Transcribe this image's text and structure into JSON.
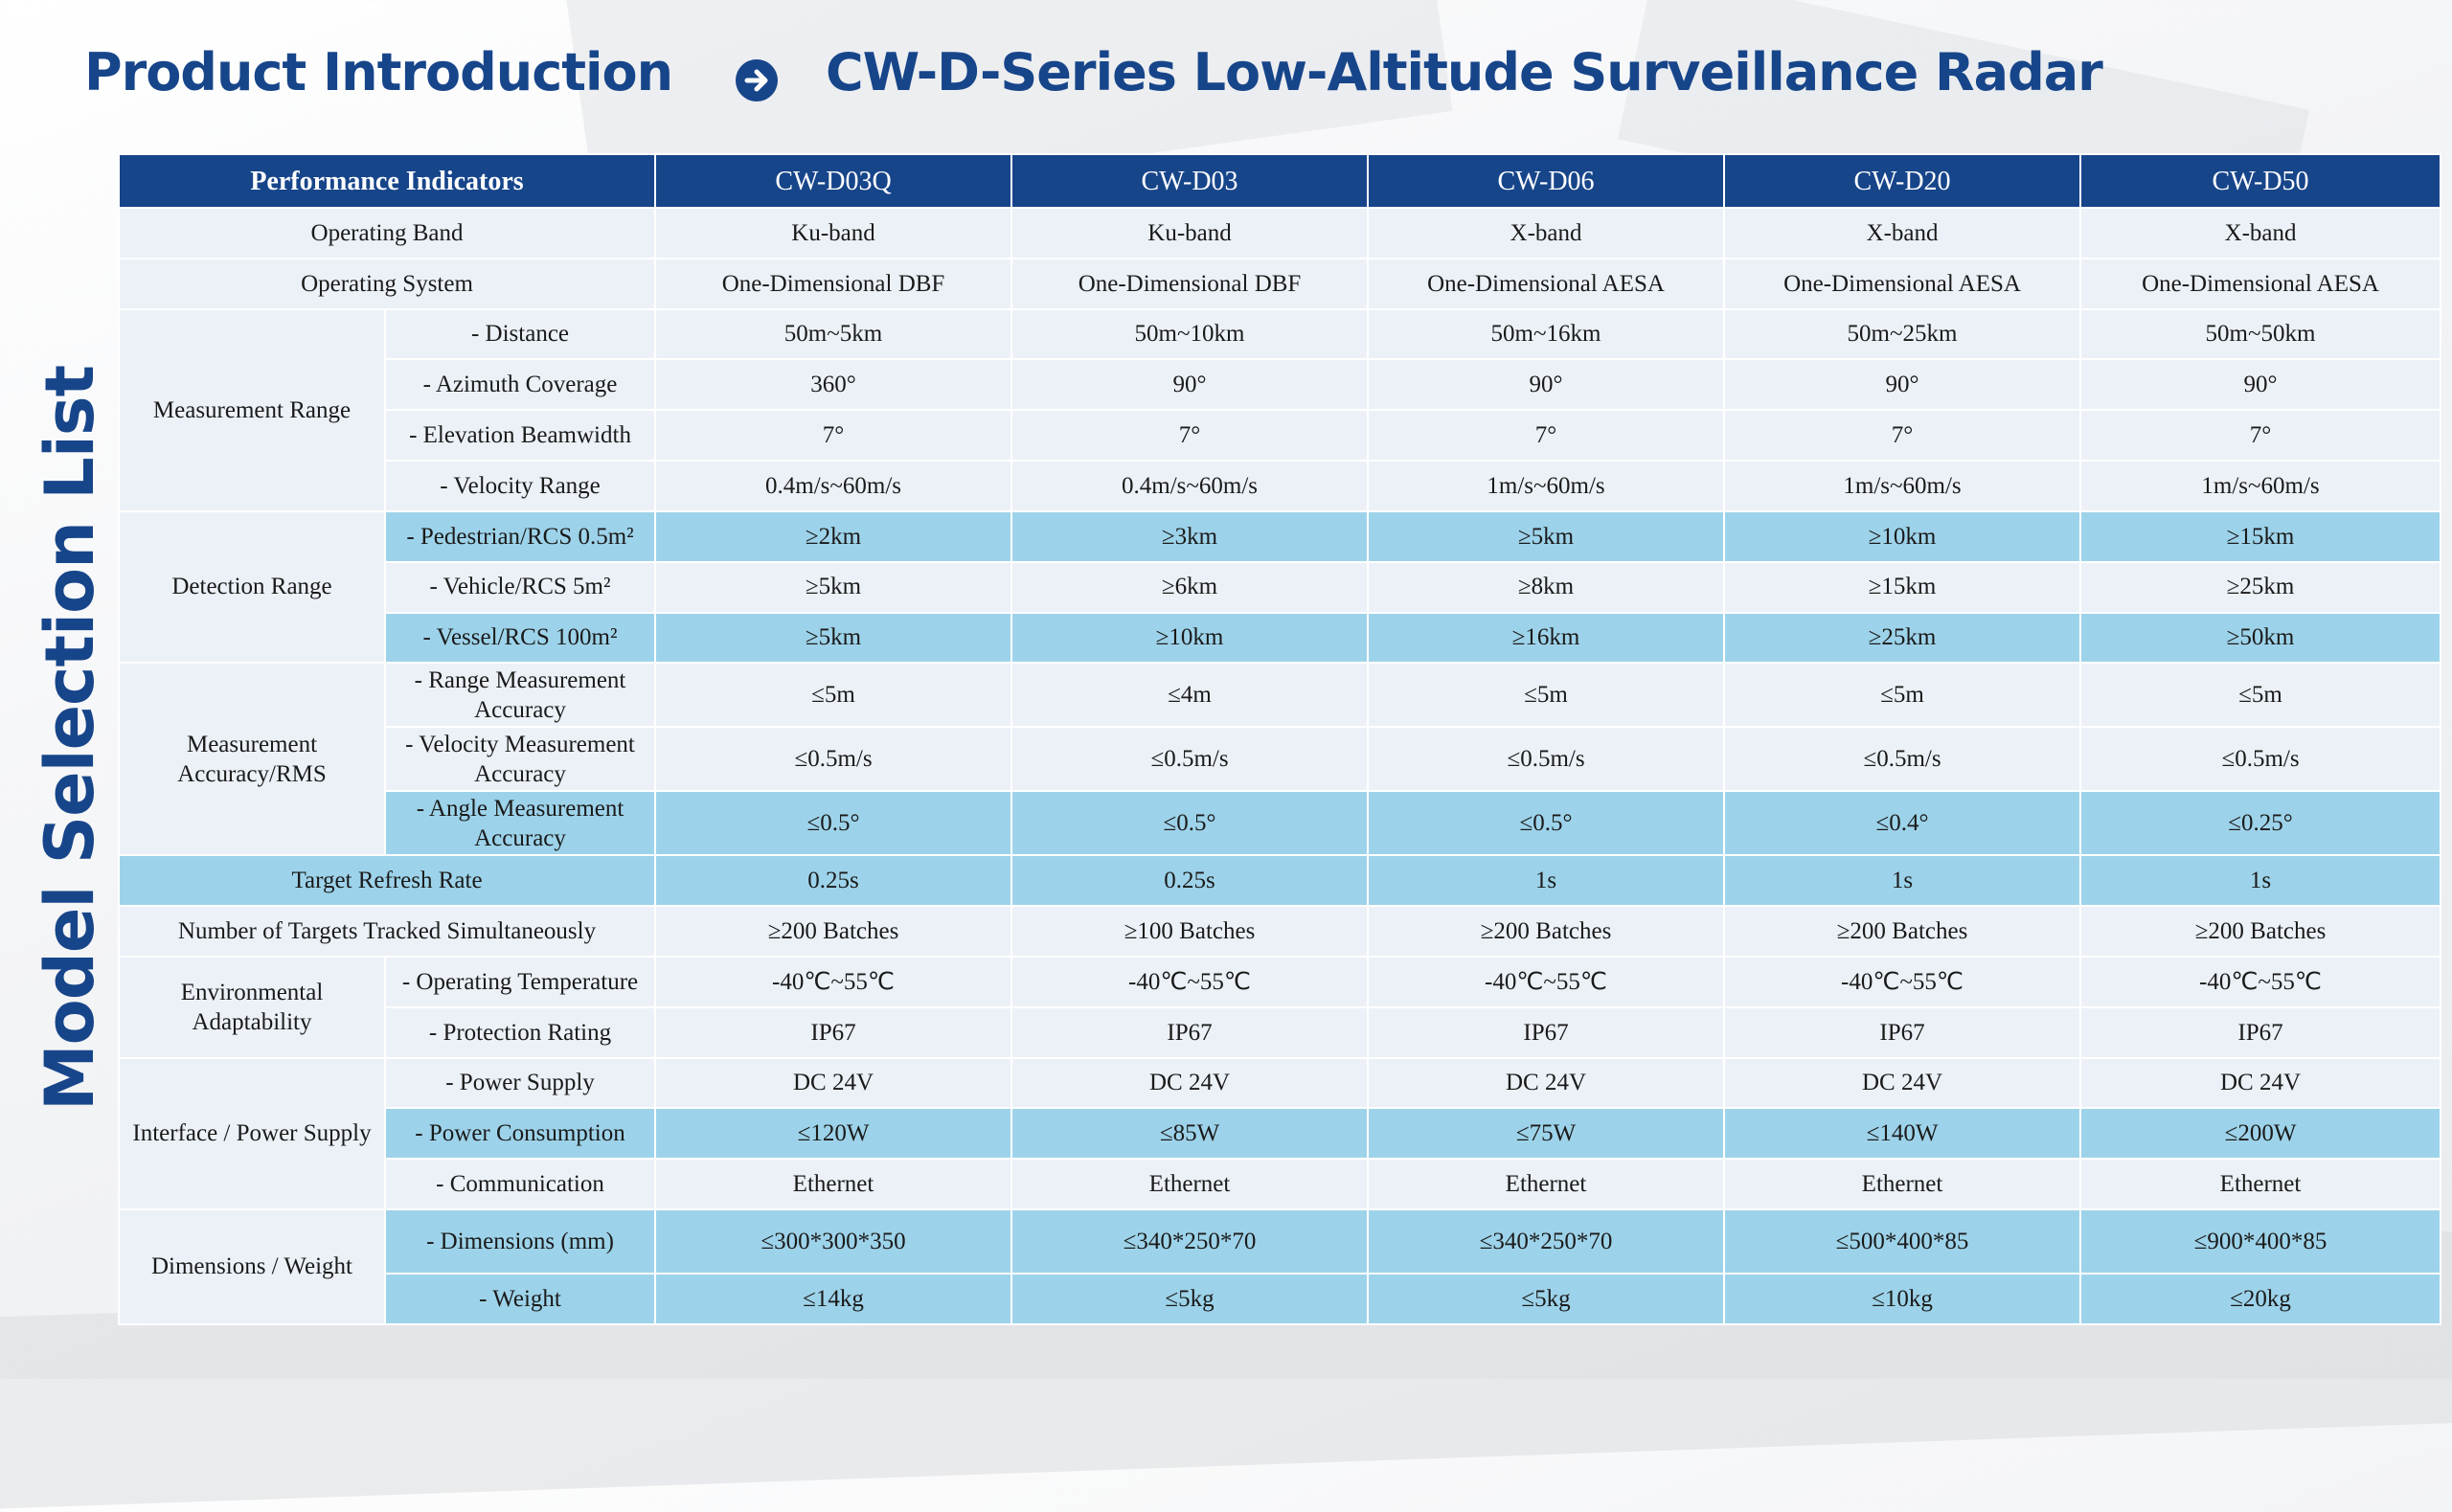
{
  "header": {
    "title": "Product Introduction",
    "subtitle": "CW-D-Series Low-Altitude Surveillance Radar",
    "arrow_icon": "arrow-circle-right-icon"
  },
  "side_label": "Model Selection List",
  "colors": {
    "brand": "#17458a",
    "row_light": "#ecf1f8",
    "row_highlight": "#9dd3ea"
  },
  "table": {
    "header": [
      "Performance Indicators",
      "CW-D03Q",
      "CW-D03",
      "CW-D06",
      "CW-D20",
      "CW-D50"
    ],
    "rows": [
      {
        "name": "row-operating-band",
        "group": "Operating Band",
        "span_group": true,
        "values": [
          "Ku-band",
          "Ku-band",
          "X-band",
          "X-band",
          "X-band"
        ]
      },
      {
        "name": "row-operating-system",
        "group": "Operating System",
        "span_group": true,
        "values": [
          "One-Dimensional DBF",
          "One-Dimensional DBF",
          "One-Dimensional AESA",
          "One-Dimensional AESA",
          "One-Dimensional AESA"
        ]
      },
      {
        "name": "row-distance",
        "group": "Measurement Range",
        "group_rows": 4,
        "sub": "- Distance",
        "values": [
          "50m~5km",
          "50m~10km",
          "50m~16km",
          "50m~25km",
          "50m~50km"
        ]
      },
      {
        "name": "row-azimuth-coverage",
        "sub": "- Azimuth Coverage",
        "values": [
          "360°",
          "90°",
          "90°",
          "90°",
          "90°"
        ]
      },
      {
        "name": "row-elevation-beamwidth",
        "sub": "- Elevation Beamwidth",
        "values": [
          "7°",
          "7°",
          "7°",
          "7°",
          "7°"
        ]
      },
      {
        "name": "row-velocity-range",
        "sub": "- Velocity Range",
        "values": [
          "0.4m/s~60m/s",
          "0.4m/s~60m/s",
          "1m/s~60m/s",
          "1m/s~60m/s",
          "1m/s~60m/s"
        ]
      },
      {
        "name": "row-pedestrian",
        "group": "Detection Range",
        "group_rows": 3,
        "sub": "- Pedestrian/RCS 0.5m²",
        "highlight": true,
        "values": [
          "≥2km",
          "≥3km",
          "≥5km",
          "≥10km",
          "≥15km"
        ]
      },
      {
        "name": "row-vehicle",
        "sub": "- Vehicle/RCS 5m²",
        "values": [
          "≥5km",
          "≥6km",
          "≥8km",
          "≥15km",
          "≥25km"
        ]
      },
      {
        "name": "row-vessel",
        "sub": "- Vessel/RCS 100m²",
        "highlight": true,
        "values": [
          "≥5km",
          "≥10km",
          "≥16km",
          "≥25km",
          "≥50km"
        ]
      },
      {
        "name": "row-range-accuracy",
        "group": "Measurement Accuracy/RMS",
        "group_rows": 3,
        "sub": "- Range Measurement Accuracy",
        "values": [
          "≤5m",
          "≤4m",
          "≤5m",
          "≤5m",
          "≤5m"
        ]
      },
      {
        "name": "row-velocity-accuracy",
        "sub": "- Velocity Measurement Accuracy",
        "values": [
          "≤0.5m/s",
          "≤0.5m/s",
          "≤0.5m/s",
          "≤0.5m/s",
          "≤0.5m/s"
        ]
      },
      {
        "name": "row-angle-accuracy",
        "sub": "- Angle Measurement Accuracy",
        "highlight": true,
        "values": [
          "≤0.5°",
          "≤0.5°",
          "≤0.5°",
          "≤0.4°",
          "≤0.25°"
        ]
      },
      {
        "name": "row-refresh-rate",
        "group": "Target Refresh Rate",
        "span_group": true,
        "highlight": true,
        "values": [
          "0.25s",
          "0.25s",
          "1s",
          "1s",
          "1s"
        ]
      },
      {
        "name": "row-targets-tracked",
        "group": "Number of Targets Tracked Simultaneously",
        "span_group": true,
        "values": [
          "≥200 Batches",
          "≥100 Batches",
          "≥200 Batches",
          "≥200 Batches",
          "≥200 Batches"
        ]
      },
      {
        "name": "row-operating-temperature",
        "group": "Environmental Adaptability",
        "group_rows": 2,
        "sub": "- Operating Temperature",
        "values": [
          "-40℃~55℃",
          "-40℃~55℃",
          "-40℃~55℃",
          "-40℃~55℃",
          "-40℃~55℃"
        ]
      },
      {
        "name": "row-protection-rating",
        "sub": "- Protection Rating",
        "values": [
          "IP67",
          "IP67",
          "IP67",
          "IP67",
          "IP67"
        ]
      },
      {
        "name": "row-power-supply",
        "group": "Interface / Power Supply",
        "group_rows": 3,
        "sub": "- Power Supply",
        "values": [
          "DC 24V",
          "DC 24V",
          "DC 24V",
          "DC 24V",
          "DC 24V"
        ]
      },
      {
        "name": "row-power-consumption",
        "sub": "- Power Consumption",
        "highlight": true,
        "values": [
          "≤120W",
          "≤85W",
          "≤75W",
          "≤140W",
          "≤200W"
        ]
      },
      {
        "name": "row-communication",
        "sub": "- Communication",
        "values": [
          "Ethernet",
          "Ethernet",
          "Ethernet",
          "Ethernet",
          "Ethernet"
        ]
      },
      {
        "name": "row-dimensions",
        "group": "Dimensions / Weight",
        "group_rows": 2,
        "sub": "- Dimensions (mm)",
        "highlight": true,
        "values": [
          "≤300*300*350",
          "≤340*250*70",
          "≤340*250*70",
          "≤500*400*85",
          "≤900*400*85"
        ]
      },
      {
        "name": "row-weight",
        "sub": "- Weight",
        "highlight": true,
        "values": [
          "≤14kg",
          "≤5kg",
          "≤5kg",
          "≤10kg",
          "≤20kg"
        ]
      }
    ]
  }
}
